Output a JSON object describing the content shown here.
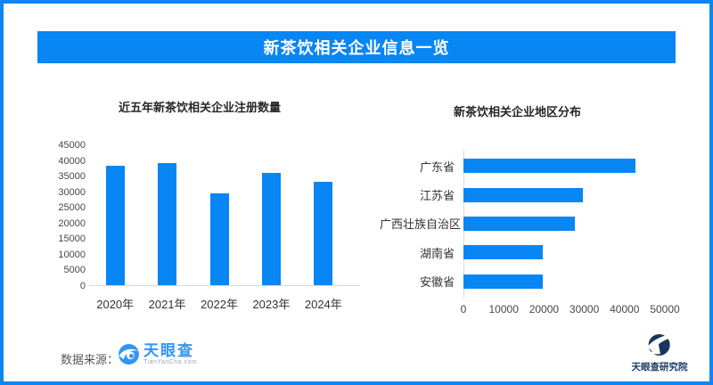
{
  "page": {
    "title": "新茶饮相关企业信息一览",
    "accent_color": "#0886f4"
  },
  "footer": {
    "source_label": "数据来源：",
    "source_logo_name": "天眼查",
    "source_logo_sub": "TianYanCha.com",
    "institute_logo_name": "天眼查研究院"
  },
  "chart_data": [
    {
      "type": "bar",
      "title": "近五年新茶饮相关企业注册数量",
      "categories": [
        "2020年",
        "2021年",
        "2022年",
        "2023年",
        "2024年"
      ],
      "values": [
        38200,
        39000,
        29200,
        35800,
        32900
      ],
      "xlabel": "",
      "ylabel": "",
      "ylim": [
        0,
        45000
      ],
      "yticks": [
        0,
        5000,
        10000,
        15000,
        20000,
        25000,
        30000,
        35000,
        40000,
        45000
      ],
      "bar_color": "#0886f4",
      "grid": false,
      "legend": "none"
    },
    {
      "type": "bar",
      "orientation": "horizontal",
      "title": "新茶饮相关企业地区分布",
      "categories": [
        "广东省",
        "江苏省",
        "广西壮族自治区",
        "湖南省",
        "安徽省"
      ],
      "values": [
        42600,
        29700,
        27700,
        19800,
        19600
      ],
      "xlabel": "",
      "ylabel": "",
      "xlim": [
        0,
        50000
      ],
      "xticks": [
        0,
        10000,
        20000,
        30000,
        40000,
        50000
      ],
      "bar_color": "#0886f4",
      "grid": false,
      "legend": "none"
    }
  ]
}
